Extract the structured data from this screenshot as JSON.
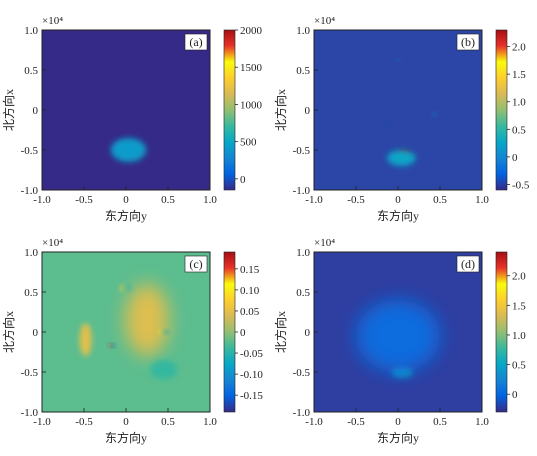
{
  "chart_data": [
    {
      "type": "heatmap",
      "panel_label": "(a)",
      "x_ticks": [
        "-1.0",
        "-0.5",
        "0",
        "0.5",
        "1.0"
      ],
      "y_ticks": [
        "1.0",
        "0.5",
        "0",
        "-0.5",
        "-1.0"
      ],
      "xlabel": "东方向y",
      "ylabel": "北方向x",
      "axis_multiplier": "×10⁴",
      "xlim": [
        -1.0,
        1.0
      ],
      "ylim": [
        -1.0,
        1.0
      ],
      "colorbar_ticks": [
        "2000",
        "1500",
        "1000",
        "500",
        "0"
      ],
      "colorbar_range": [
        -150,
        2000
      ],
      "background_value": 0,
      "features": [
        {
          "x": 0.07,
          "y": -0.52,
          "value": 2000,
          "sx": 0.09,
          "sy": 0.06
        },
        {
          "x": 0.03,
          "y": -0.5,
          "value": 420,
          "sx": 0.21,
          "sy": 0.15
        }
      ]
    },
    {
      "type": "heatmap",
      "panel_label": "(b)",
      "x_ticks": [
        "-1.0",
        "-0.5",
        "0",
        "0.5",
        "1.0"
      ],
      "y_ticks": [
        "1.0",
        "0.5",
        "0",
        "-0.5",
        "-1.0"
      ],
      "xlabel": "东方向y",
      "ylabel": "北方向x",
      "axis_multiplier": "×10⁴",
      "xlim": [
        -1.0,
        1.0
      ],
      "ylim": [
        -1.0,
        1.0
      ],
      "colorbar_ticks": [
        "2.0",
        "1.5",
        "1.0",
        "0.5",
        "0",
        "-0.5"
      ],
      "colorbar_range": [
        -0.6,
        2.3
      ],
      "background_value": -0.17,
      "features": [
        {
          "x": 0.07,
          "y": -0.55,
          "value": 2.3,
          "sx": 0.07,
          "sy": 0.04
        },
        {
          "x": 0.04,
          "y": -0.6,
          "value": 0.25,
          "sx": 0.17,
          "sy": 0.1
        },
        {
          "x": -0.13,
          "y": -0.17,
          "value": -0.45,
          "sx": 0.02,
          "sy": 0.02
        },
        {
          "x": 0.43,
          "y": -0.05,
          "value": 0.08,
          "sx": 0.02,
          "sy": 0.02
        },
        {
          "x": 0.0,
          "y": 0.62,
          "value": 0.05,
          "sx": 0.03,
          "sy": 0.01
        }
      ]
    },
    {
      "type": "heatmap",
      "panel_label": "(c)",
      "x_ticks": [
        "-1.0",
        "-0.5",
        "0",
        "0.5",
        "1.0"
      ],
      "y_ticks": [
        "1.0",
        "0.5",
        "0",
        "-0.5",
        "-1.0"
      ],
      "xlabel": "东方向y",
      "ylabel": "北方向x",
      "axis_multiplier": "×10⁴",
      "xlim": [
        -1.0,
        1.0
      ],
      "ylim": [
        -1.0,
        1.0
      ],
      "colorbar_ticks": [
        "0.15",
        "0.10",
        "0.05",
        "0",
        "-0.05",
        "-0.10",
        "-0.15"
      ],
      "colorbar_range": [
        -0.19,
        0.19
      ],
      "background_value": 0.012,
      "features": [
        {
          "x": 0.25,
          "y": 0.15,
          "value": 0.045,
          "sx": 0.26,
          "sy": 0.45
        },
        {
          "x": -0.48,
          "y": -0.1,
          "value": 0.05,
          "sx": 0.07,
          "sy": 0.2
        },
        {
          "x": -0.48,
          "y": 0.03,
          "value": 0.04,
          "sx": 0.03,
          "sy": 0.05
        },
        {
          "x": 0.45,
          "y": -0.47,
          "value": -0.04,
          "sx": 0.16,
          "sy": 0.12
        },
        {
          "x": -0.15,
          "y": -0.17,
          "value": -0.17,
          "sx": 0.02,
          "sy": 0.02
        },
        {
          "x": -0.19,
          "y": -0.17,
          "value": 0.16,
          "sx": 0.02,
          "sy": 0.02
        },
        {
          "x": 0.42,
          "y": 0.0,
          "value": 0.1,
          "sx": 0.03,
          "sy": 0.02
        },
        {
          "x": 0.47,
          "y": 0.0,
          "value": -0.1,
          "sx": 0.03,
          "sy": 0.02
        },
        {
          "x": -0.04,
          "y": 0.55,
          "value": 0.07,
          "sx": 0.03,
          "sy": 0.03
        },
        {
          "x": 0.02,
          "y": 0.55,
          "value": -0.06,
          "sx": 0.03,
          "sy": 0.03
        }
      ]
    },
    {
      "type": "heatmap",
      "panel_label": "(d)",
      "x_ticks": [
        "-1.0",
        "-0.5",
        "0",
        "0.5",
        "1.0"
      ],
      "y_ticks": [
        "1.0",
        "0.5",
        "0",
        "-0.5",
        "-1.0"
      ],
      "xlabel": "东方向y",
      "ylabel": "北方向x",
      "axis_multiplier": "×10⁴",
      "xlim": [
        -1.0,
        1.0
      ],
      "ylim": [
        -1.0,
        1.0
      ],
      "colorbar_ticks": [
        "2.0",
        "1.5",
        "1.0",
        "0.5",
        "0"
      ],
      "colorbar_range": [
        -0.3,
        2.4
      ],
      "background_value": -0.22,
      "features": [
        {
          "x": 0.07,
          "y": -0.5,
          "value": 2.35,
          "sx": 0.07,
          "sy": 0.03
        },
        {
          "x": 0.05,
          "y": -0.5,
          "value": 0.4,
          "sx": 0.13,
          "sy": 0.07
        },
        {
          "x": 0.0,
          "y": -0.05,
          "value": 0.04,
          "sx": 0.5,
          "sy": 0.45
        }
      ]
    }
  ],
  "colors": {
    "axis": "#222222",
    "colormap": [
      "#352a87",
      "#0363e1",
      "#1485d4",
      "#06a7c6",
      "#38b99e",
      "#92bf73",
      "#d9ba56",
      "#fcce2e",
      "#f9fb0e",
      "#e8332a",
      "#a50f15"
    ]
  }
}
